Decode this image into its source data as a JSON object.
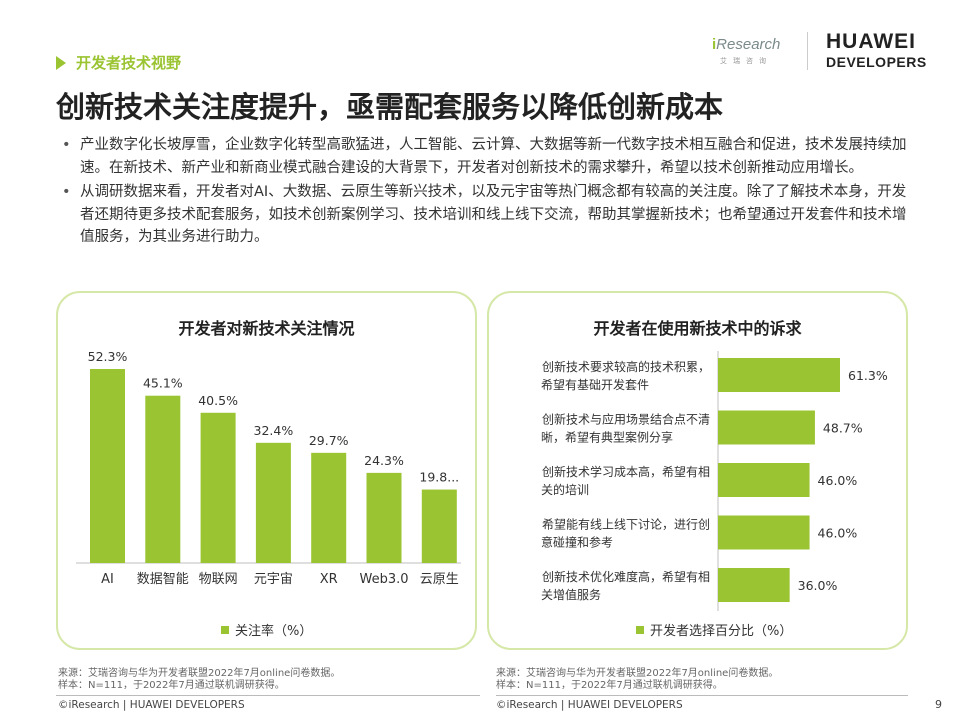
{
  "section_tag": "开发者技术视野",
  "logos": {
    "iresearch_main_a": "i",
    "iresearch_main_b": "Research",
    "iresearch_sub": "艾瑞咨询",
    "huawei_line1": "HUAWEI",
    "huawei_line2": "DEVELOPERS"
  },
  "title": "创新技术关注度提升，亟需配套服务以降低创新成本",
  "bullets": [
    "产业数字化长坡厚雪，企业数字化转型高歌猛进，人工智能、云计算、大数据等新一代数字技术相互融合和促进，技术发展持续加速。在新技术、新产业和新商业模式融合建设的大背景下，开发者对创新技术的需求攀升，希望以技术创新推动应用增长。",
    "从调研数据来看，开发者对AI、大数据、云原生等新兴技术，以及元宇宙等热门概念都有较高的关注度。除了了解技术本身，开发者还期待更多技术配套服务，如技术创新案例学习、技术培训和线上线下交流，帮助其掌握新技术；也希望通过开发套件和技术增值服务，为其业务进行助力。"
  ],
  "chart_data": [
    {
      "type": "bar",
      "title": "开发者对新技术关注情况",
      "categories": [
        "AI",
        "数据智能",
        "物联网",
        "元宇宙",
        "XR",
        "Web3.0",
        "云原生"
      ],
      "series": [
        {
          "name": "关注率（%）",
          "values": [
            52.3,
            45.1,
            40.5,
            32.4,
            29.7,
            24.3,
            19.8
          ]
        }
      ],
      "value_labels": [
        "52.3%",
        "45.1%",
        "40.5%",
        "32.4%",
        "29.7%",
        "24.3%",
        "19.8..."
      ],
      "ylim": [
        0,
        60
      ],
      "grid": false,
      "legend_position": "bottom",
      "color": "#9ac431"
    },
    {
      "type": "bar",
      "orientation": "horizontal",
      "title": "开发者在使用新技术中的诉求",
      "categories": [
        [
          "创新技术要求较高的技术积累，",
          "希望有基础开发套件"
        ],
        [
          "创新技术与应用场景结合点不清",
          "晰，希望有典型案例分享"
        ],
        [
          "创新技术学习成本高，希望有相",
          "关的培训"
        ],
        [
          "希望能有线上线下讨论，进行创",
          "意碰撞和参考"
        ],
        [
          "创新技术优化难度高，希望有相",
          "关增值服务"
        ]
      ],
      "series": [
        {
          "name": "开发者选择百分比（%）",
          "values": [
            61.3,
            48.7,
            46.0,
            46.0,
            36.0
          ]
        }
      ],
      "value_labels": [
        "61.3%",
        "48.7%",
        "46.0%",
        "46.0%",
        "36.0%"
      ],
      "xlim": [
        0,
        70
      ],
      "grid": false,
      "legend_position": "bottom",
      "color": "#9ac431"
    }
  ],
  "footnotes": {
    "left": [
      "来源：艾瑞咨询与华为开发者联盟2022年7月online问卷数据。",
      "样本：N=111，于2022年7月通过联机调研获得。"
    ],
    "right": [
      "来源：艾瑞咨询与华为开发者联盟2022年7月online问卷数据。",
      "样本：N=111，于2022年7月通过联机调研获得。"
    ]
  },
  "copyright": {
    "left": "©iResearch | HUAWEI DEVELOPERS",
    "right": "©iResearch | HUAWEI DEVELOPERS"
  },
  "page_number": "9"
}
